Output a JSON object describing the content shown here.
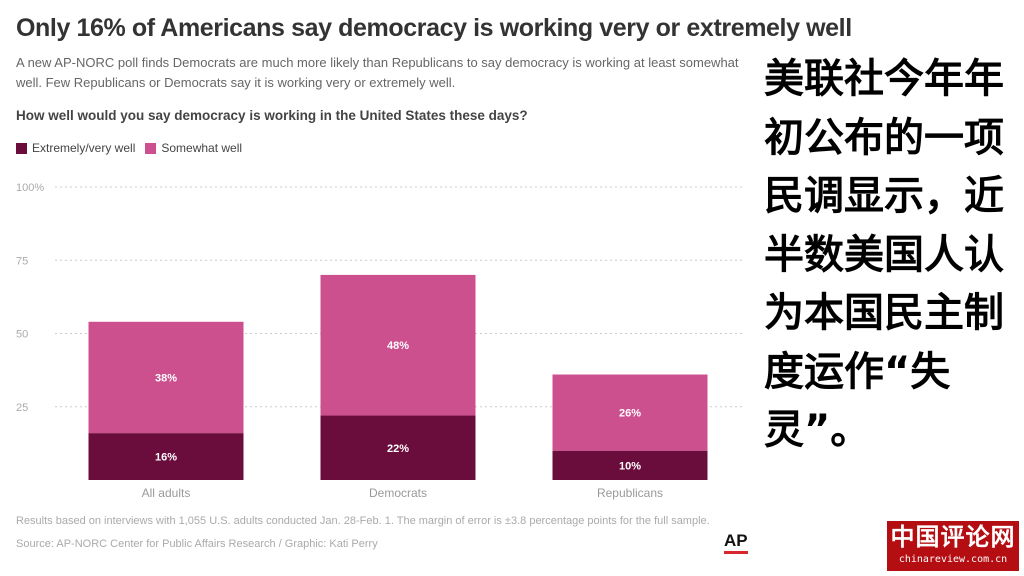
{
  "chart_title": "Only 16% of Americans say democracy is working very or extremely well",
  "chart_subtitle": "A new AP-NORC poll finds Democrats are much more likely than Republicans to say democracy is working at least somewhat well. Few Republicans or Democrats say it is working very or extremely well.",
  "chart_question": "How well would you say democracy is working in the United States these days?",
  "footnote": "Results based on interviews with 1,055 U.S. adults conducted Jan. 28-Feb. 1. The margin of error is ±3.8 percentage points for the full sample.",
  "source": "Source: AP-NORC Center for Public Affairs Research / Graphic: Kati Perry",
  "logo_text": "AP",
  "side_text": "美联社今年年初公布的一项民调显示，近半数美国人认为本国民主制度运作“失灵”。",
  "watermark": {
    "name": "中国评论网",
    "url": "chinareview.com.cn"
  },
  "colors": {
    "extremely_very": "#6b0d3c",
    "somewhat": "#cc4f8e",
    "watermark_bg": "#b40d12"
  },
  "chart_data": {
    "type": "bar",
    "stacked": true,
    "categories": [
      "All adults",
      "Democrats",
      "Republicans"
    ],
    "series": [
      {
        "name": "Extremely/very well",
        "values": [
          16,
          22,
          10
        ],
        "labels": [
          "16%",
          "22%",
          "10%"
        ],
        "color": "#6b0d3c"
      },
      {
        "name": "Somewhat well",
        "values": [
          38,
          48,
          26
        ],
        "labels": [
          "38%",
          "48%",
          "26%"
        ],
        "color": "#cc4f8e"
      }
    ],
    "y_ticks": [
      {
        "value": 25,
        "label": "25"
      },
      {
        "value": 50,
        "label": "50"
      },
      {
        "value": 75,
        "label": "75"
      },
      {
        "value": 100,
        "label": "100%"
      }
    ],
    "ylim": [
      0,
      100
    ],
    "grid": true,
    "legend_position": "top-left"
  }
}
